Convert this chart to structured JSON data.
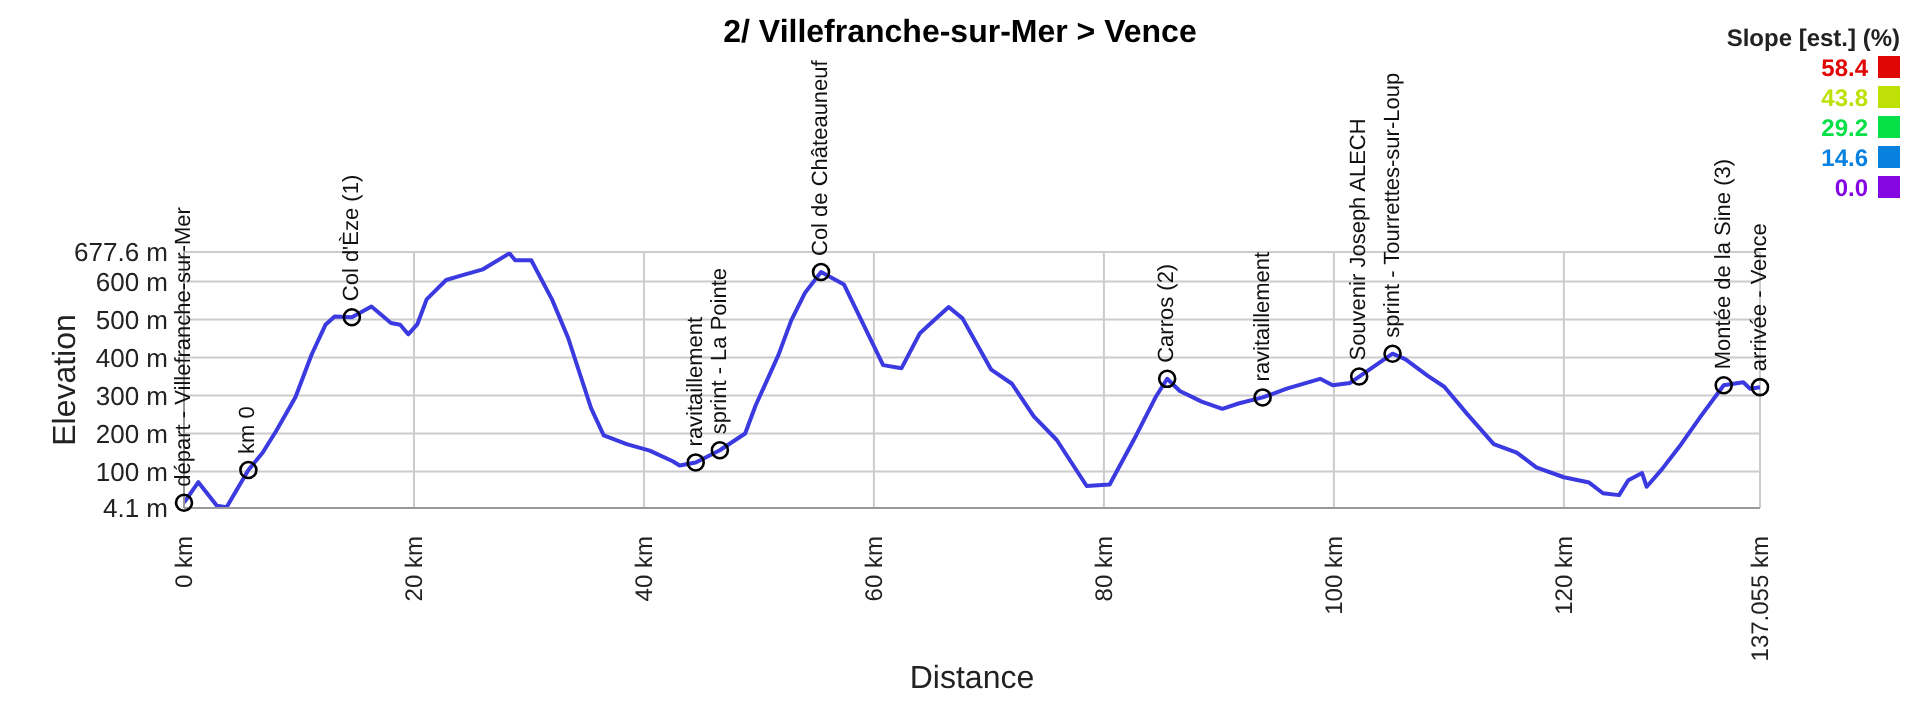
{
  "chart_data": {
    "type": "line",
    "title": "2/ Villefranche-sur-Mer > Vence",
    "xlabel": "Distance",
    "ylabel": "Elevation",
    "clabel": "Slope [est.] (%)",
    "clim": [
      0,
      58.4
    ],
    "cticks": [
      {
        "value": 58.4,
        "label": "58.4"
      },
      {
        "value": 43.8,
        "label": "43.8"
      },
      {
        "value": 29.2,
        "label": "29.2"
      },
      {
        "value": 14.6,
        "label": "14.6"
      },
      {
        "value": 0,
        "label": "0.0"
      }
    ],
    "x": [
      0,
      1.25,
      2.86,
      3.7,
      5.6,
      6.85,
      8.0,
      9.7,
      11.1,
      12.3,
      13.1,
      14.6,
      16.3,
      18.0,
      18.8,
      19.5,
      20.3,
      21.1,
      22.8,
      24.0,
      26.0,
      28.3,
      28.8,
      30.2,
      32.0,
      33.4,
      35.4,
      36.5,
      38.5,
      40.5,
      42.5,
      43.1,
      44.5,
      46.6,
      48.8,
      49.7,
      51.7,
      52.8,
      54.0,
      55.4,
      57.4,
      60.8,
      62.4,
      64.0,
      64.8,
      66.5,
      67.7,
      70.2,
      72.0,
      73.9,
      75.9,
      78.5,
      80.5,
      82.8,
      84.5,
      85.5,
      86.6,
      88.5,
      90.3,
      91.7,
      93.8,
      95.9,
      98.8,
      99.9,
      101.4,
      102.2,
      105.1,
      106.2,
      108.2,
      109.6,
      111.6,
      113.9,
      115.9,
      117.6,
      120.0,
      122.2,
      123.4,
      124.8,
      125.6,
      126.8,
      127.2,
      128.5,
      130.2,
      131.9,
      133.9,
      135.6,
      136.2,
      137.055
    ],
    "series": [
      {
        "color": "#3a3ae0",
        "values": [
          18,
          72,
          10,
          6,
          104,
          150,
          206,
          296,
          408,
          486,
          508,
          506,
          534,
          491,
          486,
          461,
          488,
          553,
          604,
          615,
          632,
          674,
          656,
          656,
          553,
          452,
          267,
          195,
          172,
          155,
          127,
          116,
          124,
          156,
          200,
          273,
          407,
          497,
          570,
          625,
          592,
          380,
          372,
          464,
          486,
          533,
          503,
          368,
          331,
          245,
          183,
          62,
          66,
          195,
          296,
          344,
          312,
          284,
          265,
          279,
          295,
          318,
          344,
          327,
          333,
          350,
          410,
          396,
          351,
          323,
          251,
          172,
          150,
          111,
          85,
          71,
          43,
          38,
          77,
          96,
          60,
          105,
          172,
          245,
          327,
          335,
          318,
          322
        ]
      }
    ],
    "xlim": [
      0,
      137.055
    ],
    "xticks": [
      {
        "value": 0,
        "label": "0 km"
      },
      {
        "value": 20,
        "label": "20 km"
      },
      {
        "value": 40,
        "label": "40 km"
      },
      {
        "value": 60,
        "label": "60 km"
      },
      {
        "value": 80,
        "label": "80 km"
      },
      {
        "value": 100,
        "label": "100 km"
      },
      {
        "value": 120,
        "label": "120 km"
      },
      {
        "value": 137.055,
        "label": "137.055 km"
      }
    ],
    "ylim": [
      4.1,
      677.6
    ],
    "yticks": [
      {
        "value": 4.1,
        "label": "4.1 m"
      },
      {
        "value": 100,
        "label": "100 m"
      },
      {
        "value": 200,
        "label": "200 m"
      },
      {
        "value": 300,
        "label": "300 m"
      },
      {
        "value": 400,
        "label": "400 m"
      },
      {
        "value": 500,
        "label": "500 m"
      },
      {
        "value": 600,
        "label": "600 m"
      },
      {
        "value": 677.6,
        "label": "677.6 m"
      }
    ],
    "grid": true,
    "marker": "none",
    "line_style": "solid",
    "annotations": [
      {
        "text": "départ - Villefranche-sur-Mer",
        "x": 0,
        "y": 18
      },
      {
        "text": "km 0",
        "x": 5.6,
        "y": 104
      },
      {
        "text": "Col d'Èze (1)",
        "x": 14.6,
        "y": 506
      },
      {
        "text": "ravitaillement",
        "x": 44.5,
        "y": 124
      },
      {
        "text": "sprint - La Pointe",
        "x": 46.6,
        "y": 156
      },
      {
        "text": "Col de Châteauneuf",
        "x": 55.4,
        "y": 625
      },
      {
        "text": "Carros (2)",
        "x": 85.5,
        "y": 344
      },
      {
        "text": "ravitaillement",
        "x": 93.8,
        "y": 295
      },
      {
        "text": "Souvenir Joseph ALECH",
        "x": 102.2,
        "y": 350
      },
      {
        "text": "sprint - Tourrettes-sur-Loup",
        "x": 105.1,
        "y": 410
      },
      {
        "text": "Montée de la Sine (3)",
        "x": 133.9,
        "y": 327
      },
      {
        "text": "arrivée - Vence",
        "x": 137.055,
        "y": 322
      }
    ]
  }
}
